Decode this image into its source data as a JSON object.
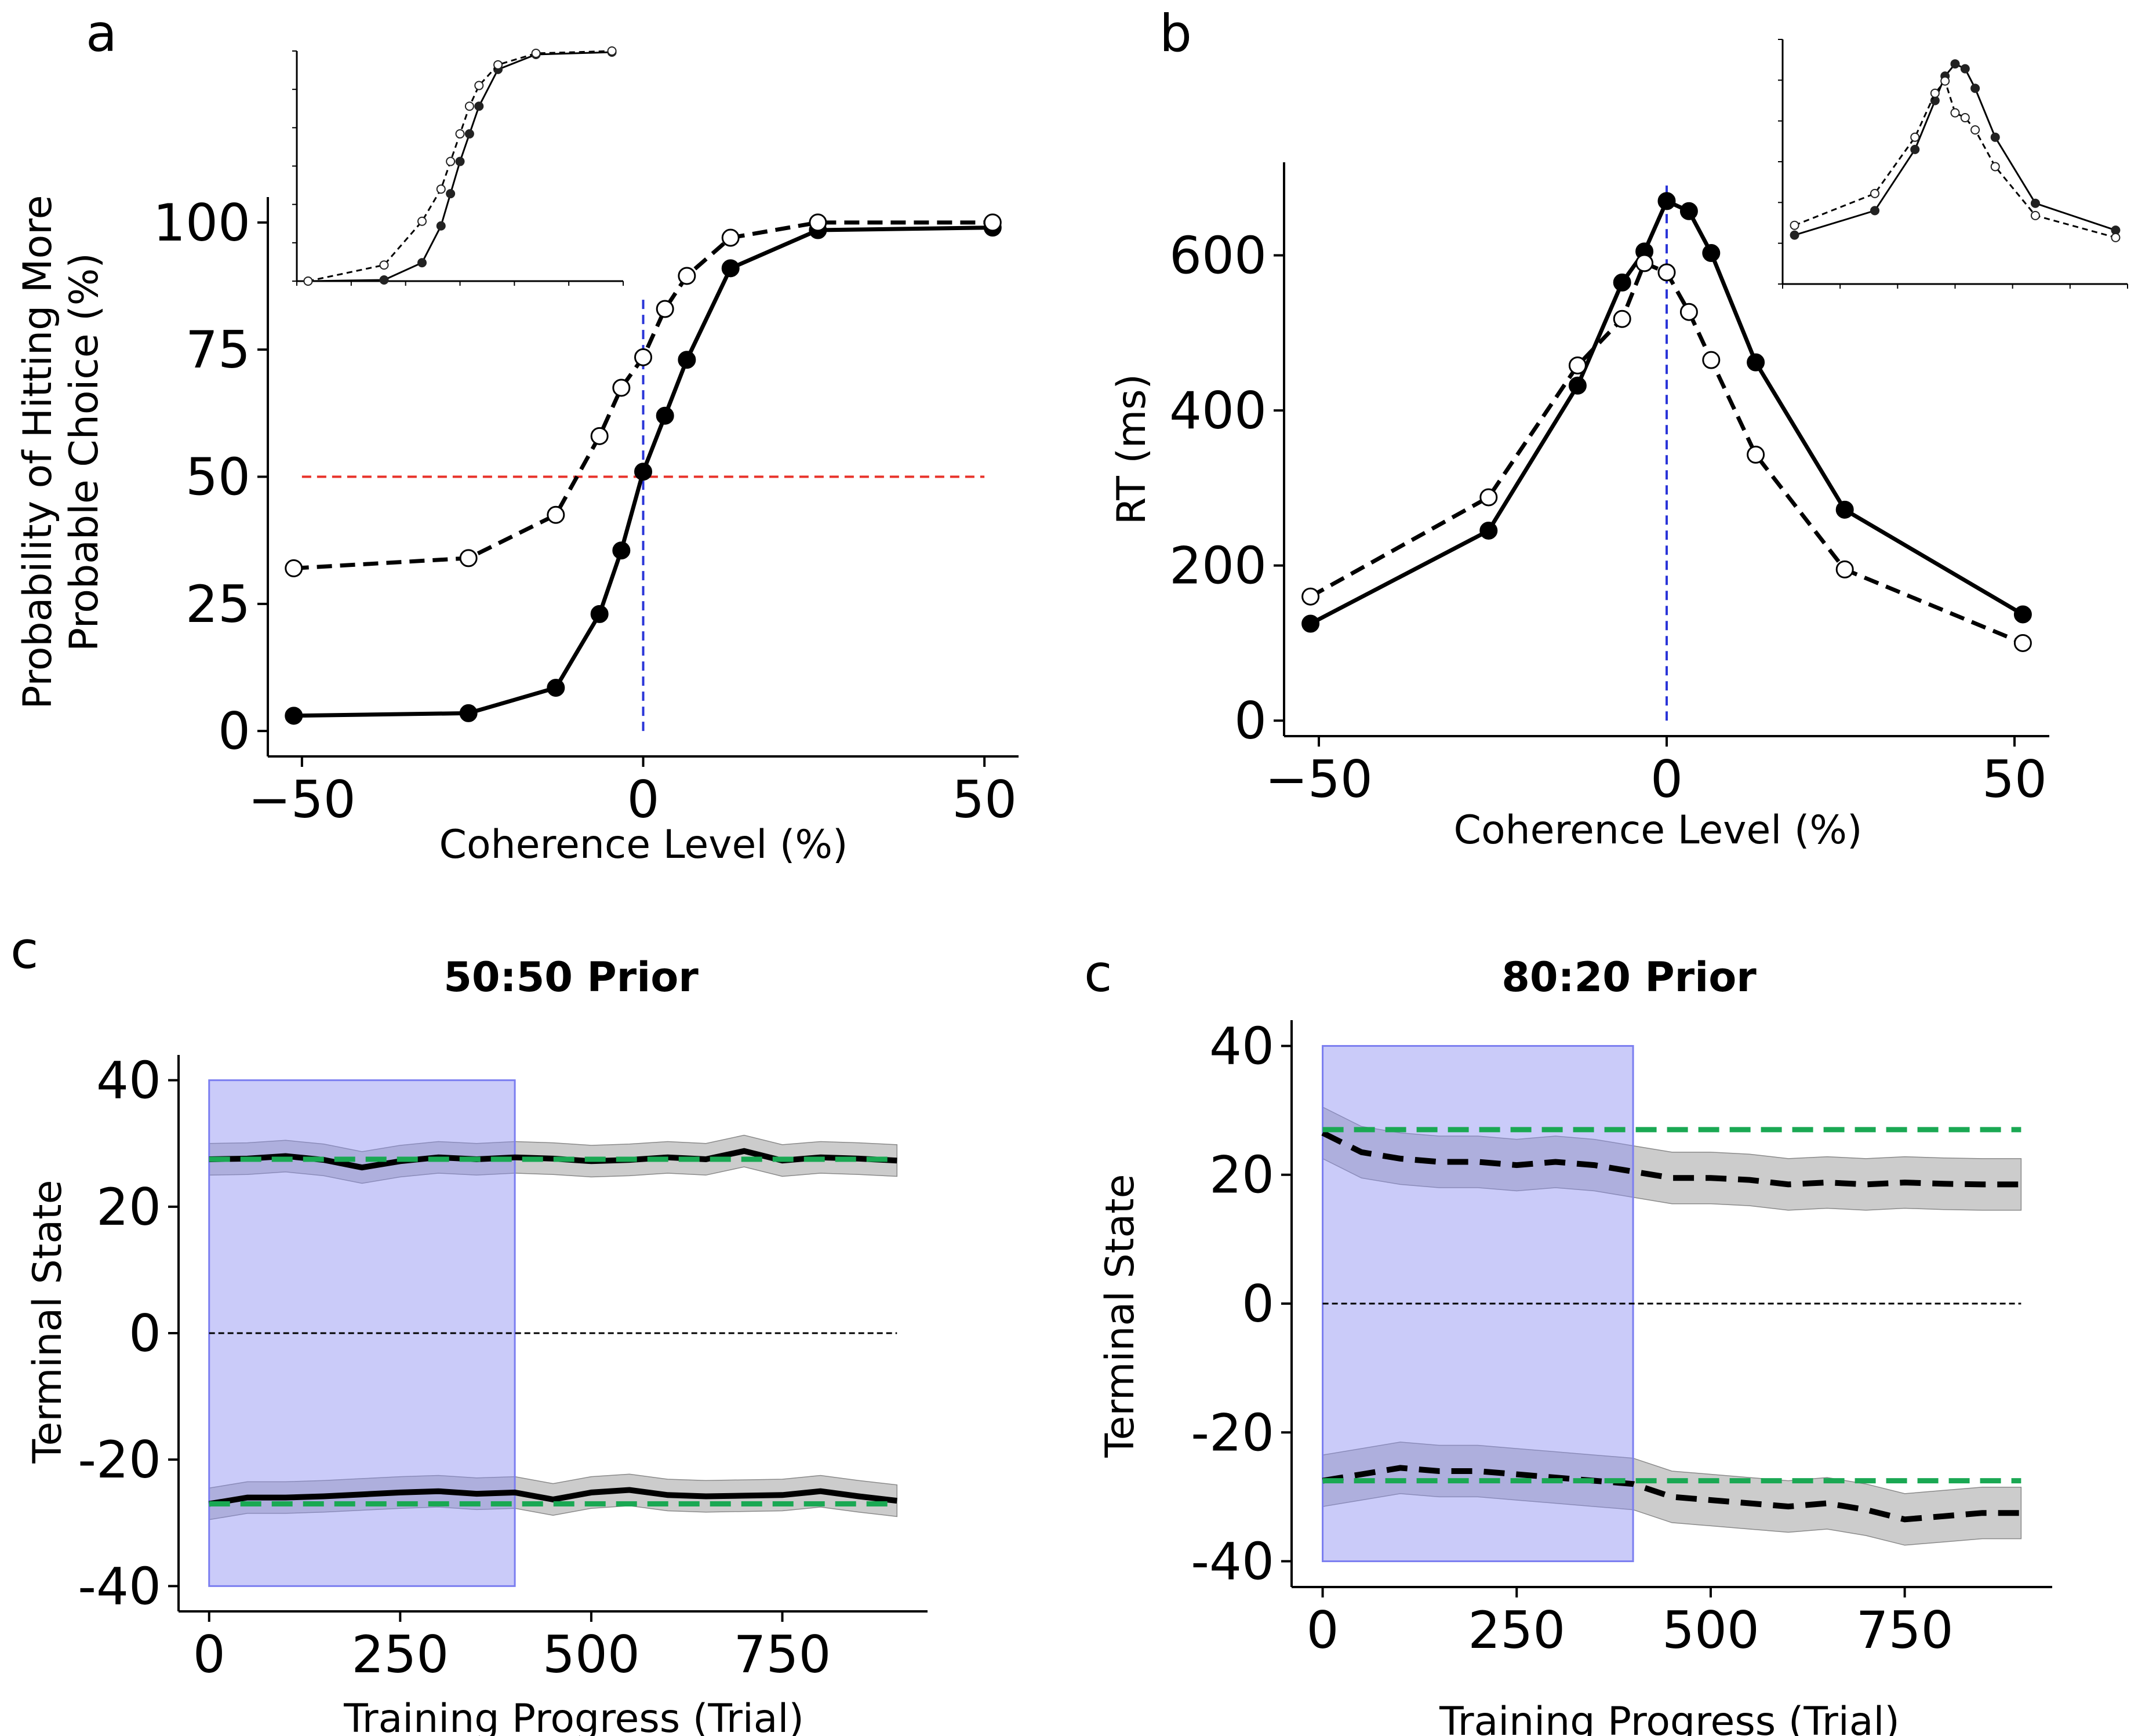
{
  "panels": [
    {
      "letter": "a"
    },
    {
      "letter": "b"
    },
    {
      "letter": "c"
    },
    {
      "letter": "c"
    }
  ],
  "chart_data": [
    {
      "id": "a",
      "type": "line",
      "xlabel": "Coherence Level (%)",
      "ylabel_line1": "Probability of Hitting More",
      "ylabel_line2": "Probable Choice (%)",
      "xlim": [
        -55,
        55
      ],
      "ylim": [
        -5,
        105
      ],
      "xticks": [
        -50,
        0,
        50
      ],
      "xtick_labels": [
        "−50",
        "0",
        "50"
      ],
      "yticks": [
        0,
        25,
        50,
        75,
        100
      ],
      "ytick_labels": [
        "0",
        "25",
        "50",
        "75",
        "100"
      ],
      "series": [
        {
          "name": "solid (filled markers)",
          "style": "solid",
          "marker": "filled",
          "x": [
            -51.2,
            -25.6,
            -12.8,
            -6.4,
            -3.2,
            0,
            3.2,
            6.4,
            12.8,
            25.6,
            51.2
          ],
          "y": [
            3,
            3.5,
            8.5,
            23,
            35.5,
            51,
            62,
            73,
            91,
            98.5,
            99
          ]
        },
        {
          "name": "dashed (open markers)",
          "style": "dashed",
          "marker": "open",
          "x": [
            -51.2,
            -25.6,
            -12.8,
            -6.4,
            -3.2,
            0,
            3.2,
            6.4,
            12.8,
            25.6,
            51.2
          ],
          "y": [
            32,
            34,
            42.5,
            58,
            67.5,
            73.5,
            83,
            89.5,
            97,
            100,
            100
          ]
        }
      ],
      "reference_lines": [
        {
          "orientation": "horizontal",
          "value": 50,
          "color": "#e8322a"
        },
        {
          "orientation": "vertical",
          "value": 0,
          "color": "#2a35d8",
          "to": 85
        }
      ],
      "inset": {
        "series": [
          {
            "style": "solid",
            "marker": "filled",
            "x": [
              -51.2,
              -25.6,
              -12.8,
              -6.4,
              -3.2,
              0,
              3.2,
              6.4,
              12.8,
              25.6,
              51.2
            ],
            "y": [
              0,
              0.5,
              8,
              24,
              38,
              52,
              64,
              76,
              92,
              98.5,
              99.5
            ]
          },
          {
            "style": "dashed",
            "marker": "open",
            "x": [
              -51.2,
              -25.6,
              -12.8,
              -6.4,
              -3.2,
              0,
              3.2,
              6.4,
              12.8,
              25.6,
              51.2
            ],
            "y": [
              0,
              7,
              26,
              40,
              52,
              64,
              76,
              85,
              94,
              99,
              100
            ]
          }
        ]
      }
    },
    {
      "id": "b",
      "type": "line",
      "xlabel": "Coherence Level (%)",
      "ylabel": "RT (ms)",
      "xlim": [
        -55,
        55
      ],
      "ylim": [
        -20,
        720
      ],
      "xticks": [
        -50,
        0,
        50
      ],
      "xtick_labels": [
        "−50",
        "0",
        "50"
      ],
      "yticks": [
        0,
        200,
        400,
        600
      ],
      "ytick_labels": [
        "0",
        "200",
        "400",
        "600"
      ],
      "series": [
        {
          "name": "solid (filled markers)",
          "style": "solid",
          "marker": "filled",
          "x": [
            -51.2,
            -25.6,
            -12.8,
            -6.4,
            -3.2,
            0,
            3.2,
            6.4,
            12.8,
            25.6,
            51.2
          ],
          "y": [
            125,
            245,
            432,
            565,
            605,
            670,
            657,
            603,
            462,
            272,
            137
          ]
        },
        {
          "name": "dashed (open markers)",
          "style": "dashed",
          "marker": "open",
          "x": [
            -51.2,
            -25.6,
            -12.8,
            -6.4,
            -3.2,
            0,
            3.2,
            6.4,
            12.8,
            25.6,
            51.2
          ],
          "y": [
            160,
            288,
            458,
            518,
            590,
            578,
            527,
            465,
            343,
            195,
            100
          ]
        }
      ],
      "reference_lines": [
        {
          "orientation": "vertical",
          "value": 0,
          "color": "#2a35d8",
          "from": 0,
          "to": 690
        }
      ],
      "inset": {
        "series": [
          {
            "style": "solid",
            "marker": "filled",
            "x": [
              -51.2,
              -25.6,
              -12.8,
              -6.4,
              -3.2,
              0,
              3.2,
              6.4,
              12.8,
              25.6,
              51.2
            ],
            "y": [
              20,
              30,
              55,
              75,
              85,
              90,
              88,
              80,
              60,
              33,
              22
            ]
          },
          {
            "style": "dashed",
            "marker": "open",
            "x": [
              -51.2,
              -25.6,
              -12.8,
              -6.4,
              -3.2,
              0,
              3.2,
              6.4,
              12.8,
              25.6,
              51.2
            ],
            "y": [
              24,
              37,
              60,
              78,
              83,
              70,
              68,
              63,
              48,
              28,
              19
            ]
          }
        ]
      }
    },
    {
      "id": "c_50",
      "type": "line",
      "title": "50:50 Prior",
      "xlabel": "Training Progress (Trial)",
      "ylabel": "Terminal State",
      "xlim": [
        -40,
        940
      ],
      "ylim": [
        -44,
        44
      ],
      "xticks": [
        0,
        250,
        500,
        750
      ],
      "xtick_labels": [
        "0",
        "250",
        "500",
        "750"
      ],
      "yticks": [
        40,
        20,
        0,
        -20,
        -40
      ],
      "ytick_labels": [
        "40",
        "20",
        "0",
        "-20",
        "-40"
      ],
      "shaded_region": {
        "x": [
          0,
          400
        ],
        "y": [
          -40,
          40
        ],
        "color": "#8a8cf2"
      },
      "series": [
        {
          "name": "upper mean",
          "color": "#000000",
          "style": "solid",
          "x": [
            0,
            50,
            100,
            150,
            200,
            250,
            300,
            350,
            400,
            450,
            500,
            550,
            600,
            650,
            700,
            750,
            800,
            850,
            900
          ],
          "y": [
            27.5,
            27.6,
            28,
            27.4,
            26.2,
            27.2,
            27.8,
            27.5,
            27.8,
            27.6,
            27.2,
            27.4,
            27.8,
            27.5,
            28.8,
            27.3,
            27.8,
            27.6,
            27.3
          ],
          "band": 2.5
        },
        {
          "name": "lower mean",
          "color": "#000000",
          "style": "solid",
          "x": [
            0,
            50,
            100,
            150,
            200,
            250,
            300,
            350,
            400,
            450,
            500,
            550,
            600,
            650,
            700,
            750,
            800,
            850,
            900
          ],
          "y": [
            -27,
            -26,
            -26,
            -25.8,
            -25.5,
            -25.2,
            -25,
            -25.4,
            -25.2,
            -26.3,
            -25.2,
            -24.8,
            -25.6,
            -25.8,
            -25.7,
            -25.6,
            -25,
            -25.8,
            -26.5
          ],
          "band": 2.5
        },
        {
          "name": "upper target",
          "color": "#1aa853",
          "style": "dashed",
          "x": [
            0,
            900
          ],
          "y": [
            27.5,
            27.5
          ]
        },
        {
          "name": "lower target",
          "color": "#1aa853",
          "style": "dashed",
          "x": [
            0,
            900
          ],
          "y": [
            -27,
            -27
          ]
        },
        {
          "name": "zero",
          "color": "#000000",
          "style": "thin-dashed",
          "x": [
            0,
            900
          ],
          "y": [
            0,
            0
          ]
        }
      ]
    },
    {
      "id": "c_80",
      "type": "line",
      "title": "80:20 Prior",
      "xlabel": "Training Progress (Trial)",
      "ylabel": "Terminal State",
      "xlim": [
        -40,
        940
      ],
      "ylim": [
        -44,
        44
      ],
      "xticks": [
        0,
        250,
        500,
        750
      ],
      "xtick_labels": [
        "0",
        "250",
        "500",
        "750"
      ],
      "yticks": [
        40,
        20,
        0,
        -20,
        -40
      ],
      "ytick_labels": [
        "40",
        "20",
        "0",
        "-20",
        "-40"
      ],
      "shaded_region": {
        "x": [
          0,
          400
        ],
        "y": [
          -40,
          40
        ],
        "color": "#8a8cf2"
      },
      "series": [
        {
          "name": "upper mean",
          "color": "#000000",
          "style": "dashed",
          "x": [
            0,
            50,
            100,
            150,
            200,
            250,
            300,
            350,
            400,
            450,
            500,
            550,
            600,
            650,
            700,
            750,
            800,
            850,
            900
          ],
          "y": [
            26.5,
            23.5,
            22.5,
            22,
            22,
            21.5,
            22,
            21.5,
            20.5,
            19.5,
            19.5,
            19.2,
            18.5,
            18.8,
            18.5,
            18.8,
            18.6,
            18.5,
            18.5
          ],
          "band": 4
        },
        {
          "name": "lower mean",
          "color": "#000000",
          "style": "dashed",
          "x": [
            0,
            50,
            100,
            150,
            200,
            250,
            300,
            350,
            400,
            450,
            500,
            550,
            600,
            650,
            700,
            750,
            800,
            850,
            900
          ],
          "y": [
            -27.5,
            -26.5,
            -25.5,
            -26,
            -26,
            -26.5,
            -27,
            -27.5,
            -28,
            -30,
            -30.5,
            -31,
            -31.5,
            -31,
            -32,
            -33.5,
            -33,
            -32.5,
            -32.5
          ],
          "band": 4
        },
        {
          "name": "upper target",
          "color": "#1aa853",
          "style": "dashed",
          "x": [
            0,
            900
          ],
          "y": [
            27,
            27
          ]
        },
        {
          "name": "lower target",
          "color": "#1aa853",
          "style": "dashed",
          "x": [
            0,
            900
          ],
          "y": [
            -27.5,
            -27.5
          ]
        },
        {
          "name": "zero",
          "color": "#000000",
          "style": "thin-dashed",
          "x": [
            0,
            900
          ],
          "y": [
            0,
            0
          ]
        }
      ]
    }
  ]
}
